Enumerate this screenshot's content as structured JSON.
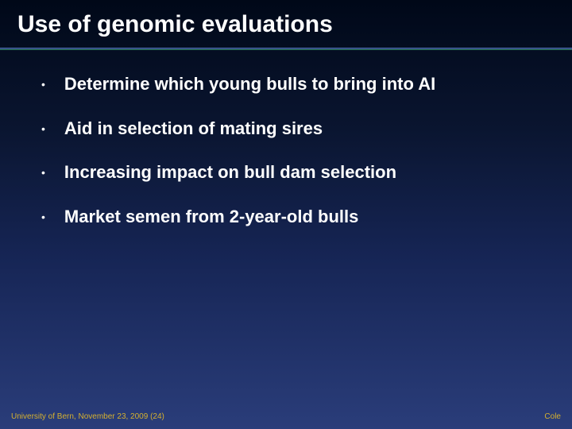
{
  "title": {
    "text": "Use of genomic evaluations",
    "fontsize": 30,
    "color": "#ffffff"
  },
  "bullets": [
    {
      "text": "Determine which young bulls to bring into AI"
    },
    {
      "text": "Aid in selection of mating sires"
    },
    {
      "text": "Increasing impact on bull dam selection"
    },
    {
      "text": "Market semen from 2-year-old bulls"
    }
  ],
  "bullet_style": {
    "fontsize": 22,
    "color": "#ffffff",
    "dot_char": "•"
  },
  "footer": {
    "left": "University of Bern, November 23, 2009 (24)",
    "right": "Cole",
    "fontsize": 10,
    "color": "#d4b030"
  },
  "background": {
    "gradient_top": "#000818",
    "gradient_bottom": "#2a3d7a"
  }
}
